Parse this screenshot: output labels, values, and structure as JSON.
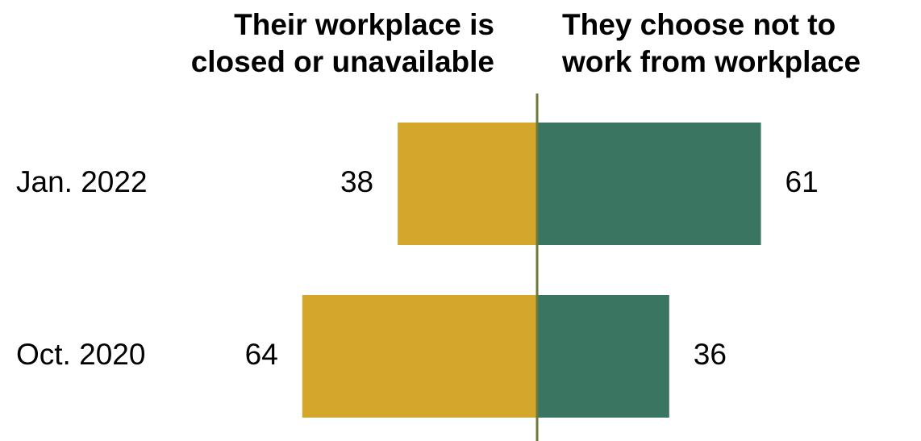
{
  "chart_data": {
    "type": "bar",
    "orientation": "horizontal-diverging",
    "categories": [
      "Jan. 2022",
      "Oct. 2020"
    ],
    "series": [
      {
        "name": "Their workplace is closed or unavailable",
        "name_lines": [
          "Their workplace is",
          "closed or unavailable"
        ],
        "values": [
          38,
          64
        ],
        "color": "#D4A72C",
        "side": "left"
      },
      {
        "name": "They choose not to work from workplace",
        "name_lines": [
          "They choose not to",
          "work from workplace"
        ],
        "values": [
          61,
          36
        ],
        "color": "#3A7562",
        "side": "right"
      }
    ],
    "value_labels": {
      "Jan. 2022": [
        "38",
        "61"
      ],
      "Oct. 2020": [
        "64",
        "36"
      ]
    },
    "axis_line_color": "#6B7A3A",
    "xlim": [
      -64,
      64
    ],
    "grid": false,
    "legend": "top"
  }
}
